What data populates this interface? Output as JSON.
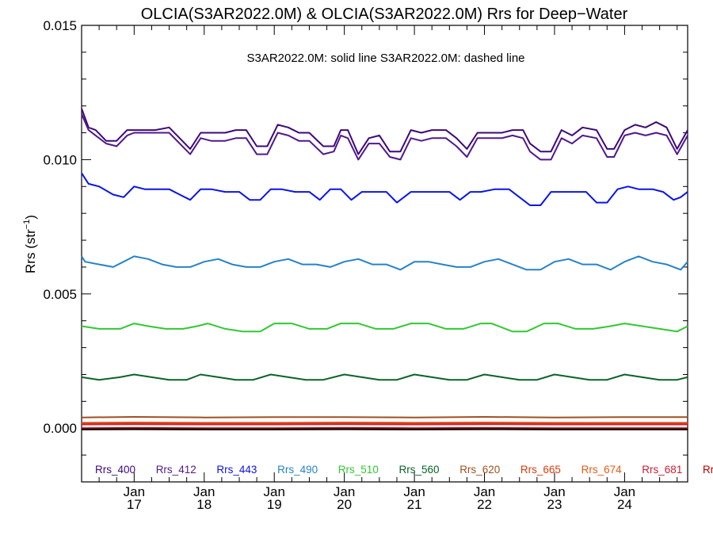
{
  "chart_data": {
    "type": "line",
    "title": "OLCIA(S3AR2022.0M) & OLCIA(S3AR2022.0M)  Rrs for Deep−Water",
    "annotation": "S3AR2022.0M: solid line   S3AR2022.0M: dashed line",
    "ylabel": "Rrs (str",
    "ylabel_sup": "−1",
    "ylabel_close": ")",
    "ylim": [
      -0.002,
      0.015
    ],
    "yticks": [
      {
        "value": 0.0,
        "label": "0.000"
      },
      {
        "value": 0.005,
        "label": "0.005"
      },
      {
        "value": 0.01,
        "label": "0.010"
      },
      {
        "value": 0.015,
        "label": "0.015"
      }
    ],
    "xlim": [
      16.25,
      24.9
    ],
    "xticks": [
      {
        "value": 17,
        "month": "Jan",
        "day": "17"
      },
      {
        "value": 18,
        "month": "Jan",
        "day": "18"
      },
      {
        "value": 19,
        "month": "Jan",
        "day": "19"
      },
      {
        "value": 20,
        "month": "Jan",
        "day": "20"
      },
      {
        "value": 21,
        "month": "Jan",
        "day": "21"
      },
      {
        "value": 22,
        "month": "Jan",
        "day": "22"
      },
      {
        "value": 23,
        "month": "Jan",
        "day": "23"
      },
      {
        "value": 24,
        "month": "Jan",
        "day": "24"
      }
    ],
    "series": [
      {
        "name": "Rrs_400",
        "color": "#3c0a78",
        "x": [
          16.25,
          16.35,
          16.45,
          16.6,
          16.75,
          16.9,
          17.0,
          17.1,
          17.3,
          17.5,
          17.65,
          17.8,
          17.95,
          18.1,
          18.3,
          18.45,
          18.6,
          18.75,
          18.9,
          19.05,
          19.2,
          19.35,
          19.5,
          19.7,
          19.85,
          19.95,
          20.05,
          20.2,
          20.35,
          20.5,
          20.65,
          20.8,
          20.95,
          21.1,
          21.25,
          21.45,
          21.6,
          21.75,
          21.9,
          22.05,
          22.25,
          22.4,
          22.55,
          22.65,
          22.8,
          22.95,
          23.1,
          23.25,
          23.4,
          23.6,
          23.75,
          23.85,
          24.0,
          24.15,
          24.3,
          24.45,
          24.6,
          24.75,
          24.9
        ],
        "values": [
          0.0119,
          0.0112,
          0.0111,
          0.0107,
          0.0107,
          0.0111,
          0.0111,
          0.0111,
          0.0111,
          0.0112,
          0.0108,
          0.0104,
          0.011,
          0.011,
          0.011,
          0.0111,
          0.0111,
          0.0105,
          0.0105,
          0.0113,
          0.0112,
          0.011,
          0.011,
          0.0105,
          0.0105,
          0.0111,
          0.0111,
          0.0102,
          0.0108,
          0.0109,
          0.0103,
          0.0103,
          0.0111,
          0.011,
          0.0111,
          0.0111,
          0.0108,
          0.0104,
          0.011,
          0.011,
          0.011,
          0.0111,
          0.0111,
          0.0106,
          0.0103,
          0.0103,
          0.0111,
          0.0109,
          0.0112,
          0.0111,
          0.0104,
          0.0104,
          0.0111,
          0.0113,
          0.0112,
          0.0114,
          0.0112,
          0.0104,
          0.0111
        ]
      },
      {
        "name": "Rrs_412",
        "color": "#50198c",
        "x": [
          16.25,
          16.35,
          16.45,
          16.6,
          16.75,
          16.9,
          17.0,
          17.1,
          17.3,
          17.5,
          17.65,
          17.8,
          17.95,
          18.1,
          18.3,
          18.45,
          18.6,
          18.75,
          18.9,
          19.05,
          19.2,
          19.35,
          19.5,
          19.7,
          19.85,
          19.95,
          20.05,
          20.2,
          20.35,
          20.5,
          20.65,
          20.8,
          20.95,
          21.1,
          21.25,
          21.45,
          21.6,
          21.75,
          21.9,
          22.05,
          22.25,
          22.4,
          22.55,
          22.65,
          22.8,
          22.95,
          23.1,
          23.25,
          23.4,
          23.6,
          23.75,
          23.85,
          24.0,
          24.15,
          24.3,
          24.45,
          24.6,
          24.75,
          24.9
        ],
        "values": [
          0.0117,
          0.0111,
          0.0109,
          0.0106,
          0.0105,
          0.0109,
          0.011,
          0.011,
          0.011,
          0.011,
          0.0106,
          0.0102,
          0.0108,
          0.0107,
          0.0107,
          0.0108,
          0.0108,
          0.0102,
          0.0102,
          0.011,
          0.0109,
          0.0107,
          0.0107,
          0.0102,
          0.0103,
          0.0109,
          0.0108,
          0.01,
          0.0106,
          0.0106,
          0.0101,
          0.01,
          0.0108,
          0.0107,
          0.0108,
          0.0108,
          0.0105,
          0.0101,
          0.0108,
          0.0108,
          0.0108,
          0.0109,
          0.0108,
          0.0103,
          0.01,
          0.01,
          0.0108,
          0.0106,
          0.0109,
          0.0108,
          0.0101,
          0.0101,
          0.0109,
          0.011,
          0.0109,
          0.011,
          0.0109,
          0.0102,
          0.0109
        ]
      },
      {
        "name": "Rrs_443",
        "color": "#0a14e6",
        "x": [
          16.25,
          16.35,
          16.5,
          16.7,
          16.85,
          17.0,
          17.15,
          17.3,
          17.5,
          17.65,
          17.8,
          17.95,
          18.1,
          18.3,
          18.5,
          18.65,
          18.8,
          18.95,
          19.1,
          19.3,
          19.5,
          19.65,
          19.8,
          19.95,
          20.1,
          20.25,
          20.4,
          20.6,
          20.75,
          20.95,
          21.1,
          21.3,
          21.5,
          21.65,
          21.8,
          21.95,
          22.15,
          22.35,
          22.5,
          22.65,
          22.8,
          22.95,
          23.1,
          23.3,
          23.45,
          23.6,
          23.75,
          23.9,
          24.05,
          24.2,
          24.4,
          24.55,
          24.7,
          24.8,
          24.9
        ],
        "values": [
          0.0095,
          0.0091,
          0.009,
          0.0087,
          0.0086,
          0.009,
          0.0089,
          0.0089,
          0.0089,
          0.0087,
          0.0085,
          0.0089,
          0.0089,
          0.0088,
          0.0088,
          0.0085,
          0.0085,
          0.0089,
          0.0089,
          0.0088,
          0.0088,
          0.0085,
          0.0089,
          0.0089,
          0.0085,
          0.0088,
          0.0088,
          0.0088,
          0.0084,
          0.0088,
          0.0088,
          0.0088,
          0.0088,
          0.0085,
          0.0088,
          0.0088,
          0.0089,
          0.0089,
          0.0086,
          0.0083,
          0.0083,
          0.0088,
          0.0088,
          0.0088,
          0.0088,
          0.0084,
          0.0084,
          0.0089,
          0.009,
          0.0089,
          0.0089,
          0.0088,
          0.0085,
          0.0086,
          0.0088
        ]
      },
      {
        "name": "Rrs_490",
        "color": "#2882c8",
        "x": [
          16.25,
          16.3,
          16.5,
          16.7,
          16.85,
          17.0,
          17.2,
          17.4,
          17.6,
          17.8,
          18.0,
          18.2,
          18.4,
          18.6,
          18.8,
          19.0,
          19.2,
          19.4,
          19.6,
          19.8,
          20.0,
          20.2,
          20.4,
          20.6,
          20.8,
          21.0,
          21.2,
          21.4,
          21.6,
          21.8,
          22.0,
          22.2,
          22.4,
          22.6,
          22.8,
          23.0,
          23.2,
          23.4,
          23.6,
          23.8,
          24.0,
          24.2,
          24.4,
          24.6,
          24.8,
          24.9
        ],
        "values": [
          0.0064,
          0.0062,
          0.0061,
          0.006,
          0.0062,
          0.0064,
          0.0063,
          0.0061,
          0.006,
          0.006,
          0.0062,
          0.0063,
          0.0061,
          0.006,
          0.006,
          0.0062,
          0.0063,
          0.0061,
          0.0061,
          0.006,
          0.0062,
          0.0063,
          0.0061,
          0.0061,
          0.0059,
          0.0062,
          0.0062,
          0.0061,
          0.006,
          0.006,
          0.0062,
          0.0063,
          0.0061,
          0.0059,
          0.0059,
          0.0062,
          0.0063,
          0.0061,
          0.0061,
          0.0059,
          0.0062,
          0.0064,
          0.0062,
          0.0061,
          0.0059,
          0.0062
        ]
      },
      {
        "name": "Rrs_510",
        "color": "#32c832",
        "x": [
          16.25,
          16.5,
          16.8,
          17.0,
          17.2,
          17.45,
          17.7,
          17.9,
          18.05,
          18.3,
          18.55,
          18.8,
          19.0,
          19.25,
          19.5,
          19.75,
          19.95,
          20.2,
          20.45,
          20.7,
          20.95,
          21.2,
          21.45,
          21.7,
          21.95,
          22.1,
          22.4,
          22.6,
          22.85,
          23.05,
          23.3,
          23.55,
          23.8,
          24.0,
          24.25,
          24.5,
          24.75,
          24.9
        ],
        "values": [
          0.0038,
          0.0037,
          0.0037,
          0.0039,
          0.0038,
          0.0037,
          0.0037,
          0.0038,
          0.0039,
          0.0037,
          0.0036,
          0.0036,
          0.0039,
          0.0039,
          0.0037,
          0.0037,
          0.0039,
          0.0039,
          0.0037,
          0.0037,
          0.0039,
          0.0039,
          0.0037,
          0.0037,
          0.0039,
          0.0039,
          0.0036,
          0.0036,
          0.0039,
          0.0039,
          0.0037,
          0.0037,
          0.0038,
          0.0039,
          0.0038,
          0.0037,
          0.0036,
          0.0038
        ]
      },
      {
        "name": "Rrs_560",
        "color": "#0a6428",
        "x": [
          16.25,
          16.5,
          16.8,
          17.0,
          17.25,
          17.5,
          17.75,
          17.95,
          18.2,
          18.45,
          18.7,
          18.95,
          19.2,
          19.45,
          19.7,
          20.0,
          20.25,
          20.5,
          20.75,
          21.0,
          21.25,
          21.5,
          21.75,
          22.0,
          22.25,
          22.5,
          22.75,
          23.0,
          23.25,
          23.5,
          23.75,
          24.0,
          24.25,
          24.5,
          24.75,
          24.9
        ],
        "values": [
          0.0019,
          0.0018,
          0.0019,
          0.002,
          0.0019,
          0.0018,
          0.0018,
          0.002,
          0.0019,
          0.0018,
          0.0018,
          0.002,
          0.0019,
          0.0018,
          0.0018,
          0.002,
          0.0019,
          0.0018,
          0.0018,
          0.002,
          0.0019,
          0.0018,
          0.0018,
          0.002,
          0.0019,
          0.0018,
          0.0018,
          0.002,
          0.0019,
          0.0018,
          0.0018,
          0.002,
          0.0019,
          0.0018,
          0.0018,
          0.0019
        ]
      },
      {
        "name": "Rrs_620",
        "color": "#a0501e",
        "x": [
          16.25,
          17.0,
          18.0,
          19.0,
          20.0,
          21.0,
          22.0,
          23.0,
          24.0,
          24.9
        ],
        "values": [
          0.0004,
          0.00042,
          0.0004,
          0.00041,
          0.00041,
          0.0004,
          0.00042,
          0.0004,
          0.00041,
          0.00041
        ]
      },
      {
        "name": "Rrs_665",
        "color": "#dc3c0a",
        "x": [
          16.25,
          17.0,
          18.0,
          19.0,
          20.0,
          21.0,
          22.0,
          23.0,
          24.0,
          24.9
        ],
        "values": [
          0.0002,
          0.00021,
          0.0002,
          0.0002,
          0.00021,
          0.0002,
          0.00021,
          0.0002,
          0.0002,
          0.0002
        ]
      },
      {
        "name": "Rrs_674",
        "color": "#e65a14",
        "x": [
          16.25,
          17.0,
          18.0,
          19.0,
          20.0,
          21.0,
          22.0,
          23.0,
          24.0,
          24.9
        ],
        "values": [
          0.00016,
          0.00017,
          0.00016,
          0.00016,
          0.00017,
          0.00016,
          0.00017,
          0.00016,
          0.00016,
          0.00016
        ]
      },
      {
        "name": "Rrs_681",
        "color": "#c81e32",
        "x": [
          16.25,
          17.0,
          18.0,
          19.0,
          20.0,
          21.0,
          22.0,
          23.0,
          24.0,
          24.9
        ],
        "values": [
          0.00014,
          0.00015,
          0.00014,
          0.00014,
          0.00015,
          0.00014,
          0.00015,
          0.00014,
          0.00014,
          0.00014
        ]
      },
      {
        "name": "Rr",
        "color": "#b40000",
        "x": [
          16.25,
          17.0,
          18.0,
          19.0,
          20.0,
          21.0,
          22.0,
          23.0,
          24.0,
          24.9
        ],
        "values": [
          0.0,
          1e-05,
          0.0,
          0.0,
          1e-05,
          0.0,
          1e-05,
          0.0,
          0.0,
          0.0
        ]
      },
      {
        "name": "",
        "color": "#000000",
        "x": [
          16.25,
          17.0,
          18.0,
          19.0,
          20.0,
          21.0,
          22.0,
          23.0,
          24.0,
          24.9
        ],
        "values": [
          -5e-05,
          -4e-05,
          -5e-05,
          -5e-05,
          -4e-05,
          -5e-05,
          -4e-05,
          -5e-05,
          -5e-05,
          -5e-05
        ]
      }
    ],
    "legend": [
      {
        "label": "Rrs_400",
        "color": "#3c0a78"
      },
      {
        "label": "Rrs_412",
        "color": "#50198c"
      },
      {
        "label": "Rrs_443",
        "color": "#0a14e6"
      },
      {
        "label": "Rrs_490",
        "color": "#2882c8"
      },
      {
        "label": "Rrs_510",
        "color": "#32c832"
      },
      {
        "label": "Rrs_560",
        "color": "#0a6428"
      },
      {
        "label": "Rrs_620",
        "color": "#a0501e"
      },
      {
        "label": "Rrs_665",
        "color": "#dc3c0a"
      },
      {
        "label": "Rrs_674",
        "color": "#e65a14"
      },
      {
        "label": "Rrs_681",
        "color": "#c81e32"
      },
      {
        "label": "Rr",
        "color": "#b40000"
      }
    ]
  }
}
